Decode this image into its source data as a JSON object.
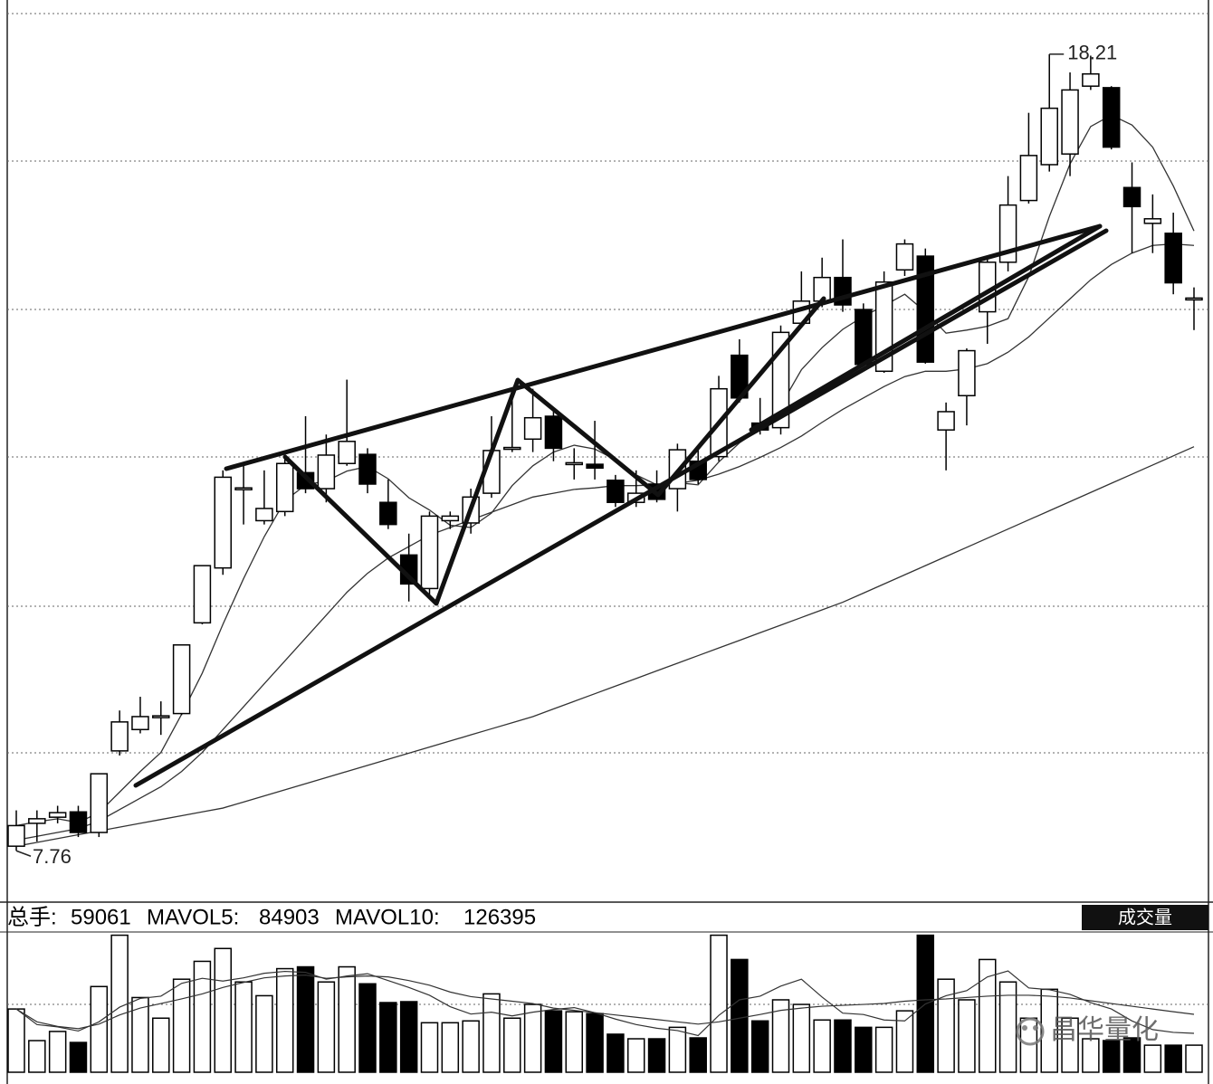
{
  "chart_data": {
    "type": "candlestick",
    "up_color": "#ffffff",
    "down_color": "#000000",
    "edge_color": "#000000",
    "ylim": [
      7.11,
      18.92
    ],
    "open": [
      7.82,
      8.12,
      8.2,
      8.27,
      8.0,
      9.07,
      9.35,
      9.52,
      9.56,
      10.75,
      11.47,
      12.51,
      12.09,
      12.21,
      12.72,
      12.51,
      12.84,
      12.96,
      12.33,
      11.64,
      11.2,
      12.09,
      12.06,
      12.45,
      13.04,
      13.16,
      13.46,
      12.84,
      12.83,
      12.62,
      12.33,
      12.57,
      12.51,
      12.87,
      12.93,
      14.26,
      13.37,
      13.31,
      14.68,
      14.97,
      15.28,
      14.86,
      14.05,
      15.38,
      15.56,
      13.28,
      13.73,
      14.83,
      15.48,
      16.29,
      16.76,
      16.9,
      17.79,
      17.77,
      16.46,
      15.99,
      15.86,
      15.0
    ],
    "high": [
      8.29,
      8.29,
      8.35,
      8.35,
      8.77,
      9.6,
      9.78,
      9.72,
      10.46,
      11.5,
      12.75,
      12.81,
      12.75,
      12.93,
      13.46,
      13.22,
      13.94,
      13.04,
      12.63,
      11.92,
      12.21,
      12.21,
      12.51,
      13.46,
      13.7,
      13.82,
      13.52,
      13.04,
      13.4,
      12.69,
      12.75,
      12.75,
      13.1,
      13.04,
      13.99,
      14.47,
      13.7,
      14.65,
      15.36,
      15.54,
      15.78,
      14.94,
      15.36,
      15.78,
      15.66,
      13.64,
      14.35,
      15.54,
      16.61,
      17.44,
      18.21,
      17.97,
      18.19,
      17.79,
      16.79,
      16.37,
      16.13,
      15.15
    ],
    "low": [
      7.76,
      7.88,
      8.12,
      7.94,
      7.94,
      9.01,
      9.3,
      9.28,
      9.54,
      10.73,
      11.38,
      12.04,
      12.04,
      12.15,
      12.45,
      12.33,
      12.81,
      12.45,
      11.98,
      11.03,
      11.09,
      11.98,
      11.92,
      12.39,
      12.99,
      12.99,
      12.87,
      12.63,
      12.63,
      12.27,
      12.27,
      12.33,
      12.21,
      12.57,
      12.87,
      13.64,
      13.22,
      13.22,
      14.65,
      14.89,
      14.83,
      14.11,
      14.03,
      15.3,
      14.15,
      12.75,
      13.34,
      14.41,
      15.36,
      16.25,
      16.67,
      16.61,
      17.74,
      16.96,
      15.6,
      15.6,
      15.06,
      14.59
    ],
    "close": [
      8.09,
      8.18,
      8.26,
      8.0,
      8.77,
      9.45,
      9.52,
      9.53,
      10.46,
      11.5,
      12.66,
      12.52,
      12.25,
      12.84,
      12.51,
      12.95,
      13.13,
      12.57,
      12.04,
      11.26,
      12.15,
      12.15,
      12.4,
      13.01,
      13.05,
      13.44,
      13.04,
      12.85,
      12.78,
      12.33,
      12.45,
      12.37,
      13.02,
      12.63,
      13.82,
      13.7,
      13.28,
      14.56,
      14.97,
      15.28,
      14.92,
      14.14,
      15.22,
      15.72,
      14.17,
      13.52,
      14.32,
      15.48,
      16.23,
      16.88,
      17.5,
      17.74,
      17.95,
      16.99,
      16.21,
      16.05,
      15.21,
      15.01
    ],
    "ma": [
      {
        "color": "#333333",
        "values": [
          8.09,
          8.14,
          8.18,
          8.13,
          8.26,
          8.53,
          8.8,
          9.05,
          9.55,
          10.09,
          10.73,
          11.33,
          11.88,
          12.35,
          12.56,
          12.61,
          12.74,
          12.8,
          12.64,
          12.39,
          12.23,
          12.03,
          12.0,
          12.19,
          12.55,
          12.81,
          12.99,
          13.08,
          13.03,
          12.89,
          12.69,
          12.56,
          12.59,
          12.56,
          12.86,
          13.11,
          13.29,
          13.6,
          14.07,
          14.36,
          14.6,
          14.77,
          14.91,
          15.06,
          14.83,
          14.55,
          14.59,
          14.64,
          14.74,
          15.29,
          16.08,
          16.77,
          17.26,
          17.41,
          17.28,
          16.99,
          16.48,
          15.89
        ]
      },
      {
        "color": "#333333",
        "values": [
          7.9,
          7.95,
          8.0,
          8.05,
          8.15,
          8.3,
          8.45,
          8.6,
          8.8,
          9.05,
          9.35,
          9.65,
          9.95,
          10.25,
          10.55,
          10.85,
          11.15,
          11.4,
          11.6,
          11.75,
          11.9,
          12.0,
          12.1,
          12.2,
          12.3,
          12.4,
          12.45,
          12.5,
          12.52,
          12.55,
          12.55,
          12.56,
          12.58,
          12.62,
          12.7,
          12.8,
          12.92,
          13.05,
          13.2,
          13.38,
          13.55,
          13.7,
          13.85,
          13.98,
          14.05,
          14.05,
          14.08,
          14.15,
          14.3,
          14.5,
          14.75,
          15.0,
          15.25,
          15.45,
          15.6,
          15.7,
          15.72,
          15.7
        ]
      },
      {
        "color": "#333333",
        "values": [
          7.82,
          7.87,
          7.92,
          7.97,
          8.02,
          8.07,
          8.12,
          8.17,
          8.22,
          8.27,
          8.32,
          8.4,
          8.48,
          8.56,
          8.64,
          8.72,
          8.8,
          8.88,
          8.96,
          9.04,
          9.12,
          9.2,
          9.28,
          9.36,
          9.44,
          9.52,
          9.62,
          9.72,
          9.82,
          9.92,
          10.02,
          10.12,
          10.22,
          10.32,
          10.42,
          10.52,
          10.62,
          10.72,
          10.82,
          10.92,
          11.02,
          11.14,
          11.26,
          11.38,
          11.5,
          11.62,
          11.74,
          11.86,
          11.98,
          12.1,
          12.22,
          12.34,
          12.46,
          12.58,
          12.7,
          12.82,
          12.94,
          13.06
        ]
      }
    ],
    "volume": {
      "label": "总手:",
      "title": "成交量",
      "ylim": [
        0,
        310000
      ],
      "values": [
        138000,
        69000,
        89000,
        65000,
        187000,
        299000,
        163000,
        118000,
        203000,
        242000,
        270000,
        197000,
        167000,
        226000,
        230000,
        197000,
        230000,
        193000,
        152000,
        154000,
        108000,
        108000,
        112000,
        171000,
        118000,
        148000,
        134000,
        132000,
        128000,
        83000,
        73000,
        73000,
        98000,
        75000,
        299000,
        246000,
        112000,
        158000,
        148000,
        114000,
        114000,
        98000,
        98000,
        134000,
        299000,
        203000,
        158000,
        246000,
        197000,
        118000,
        181000,
        118000,
        73000,
        69000,
        75000,
        59000,
        59000,
        59061
      ],
      "ma": [
        {
          "name": "MAVOL5:",
          "color": "#333333",
          "values": [
            138000,
            104000,
            99000,
            90000,
            110000,
            142000,
            161000,
            166000,
            194000,
            205000,
            199000,
            206000,
            216000,
            220000,
            218000,
            203000,
            210000,
            215000,
            200000,
            185000,
            168000,
            143000,
            127000,
            131000,
            123000,
            131000,
            137000,
            141000,
            130000,
            116000,
            104000,
            96000,
            91000,
            80000,
            124000,
            158000,
            166000,
            188000,
            203000,
            164000,
            129000,
            126000,
            114000,
            112000,
            149000,
            167000,
            178000,
            208000,
            221000,
            184000,
            180000,
            170000,
            152000,
            138000,
            112000,
            93000,
            87000,
            84903
          ]
        },
        {
          "name": "MAVOL10:",
          "color": "#333333",
          "values": [
            138000,
            110000,
            100000,
            95000,
            105000,
            125000,
            140000,
            150000,
            160000,
            171000,
            185000,
            196000,
            206000,
            210000,
            212000,
            205000,
            208000,
            210000,
            208000,
            200000,
            190000,
            175000,
            165000,
            160000,
            155000,
            150000,
            140000,
            135000,
            130000,
            125000,
            120000,
            115000,
            110000,
            105000,
            110000,
            118000,
            126000,
            135000,
            140000,
            144000,
            146000,
            148000,
            150000,
            155000,
            158000,
            160000,
            163000,
            166000,
            168000,
            168000,
            166000,
            162000,
            156000,
            150000,
            144000,
            138000,
            132000,
            126395
          ]
        }
      ]
    },
    "watermark": "昌华量化"
  }
}
